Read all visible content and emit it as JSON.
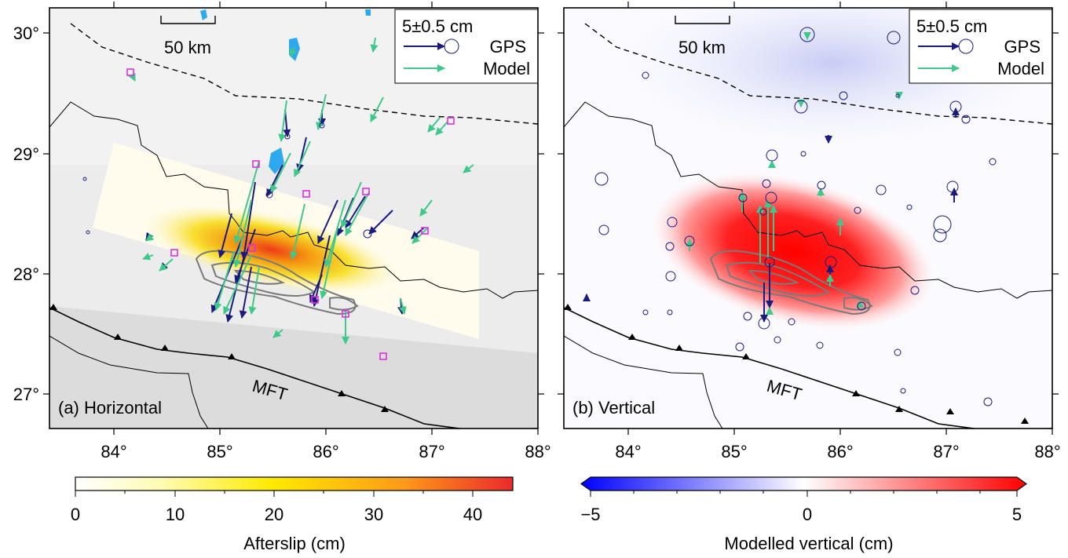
{
  "panels": [
    {
      "id": "a",
      "label": "(a) Horizontal",
      "x_ticks": [
        "84°",
        "85°",
        "86°",
        "87°",
        "88°"
      ],
      "y_ticks": [
        "30°",
        "29°",
        "28°",
        "27°"
      ],
      "scale_bar": "50 km",
      "fault_label": "MFT",
      "legend": {
        "scale": "5±0.5 cm",
        "gps": "GPS",
        "model": "Model"
      },
      "colorbar": {
        "label": "Afterslip (cm)",
        "ticks": [
          "0",
          "10",
          "20",
          "30",
          "40"
        ],
        "min": 0,
        "max": 44
      }
    },
    {
      "id": "b",
      "label": "(b) Vertical",
      "x_ticks": [
        "84°",
        "85°",
        "86°",
        "87°",
        "88°"
      ],
      "y_ticks": [],
      "scale_bar": "50 km",
      "fault_label": "MFT",
      "legend": {
        "scale": "5±0.5 cm",
        "gps": "GPS",
        "model": "Model"
      },
      "colorbar": {
        "label": "Modelled vertical (cm)",
        "ticks": [
          "−5",
          "0",
          "5"
        ],
        "min": -5,
        "max": 5
      }
    }
  ],
  "colors": {
    "gps": "#1a1a80",
    "model": "#3ec98a",
    "marker": "#e030e0",
    "lakes": "#2ea8ee"
  },
  "chart_data": {
    "type": "map",
    "x_range_deg": [
      83.4,
      88.0
    ],
    "y_range_deg": [
      26.7,
      30.2
    ]
  }
}
